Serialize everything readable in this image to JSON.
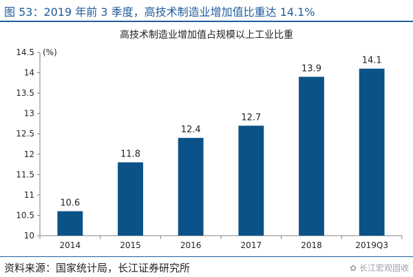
{
  "figure_title": "图 53：2019 年前 3 季度，高技术制造业增加值比重达 14.1%",
  "source": "资料来源：国家统计局，长江证券研究所",
  "watermark": "长江宏观固收",
  "colors": {
    "bar": "#0a5287",
    "title": "#1f5b9c"
  },
  "chart_data": {
    "type": "bar",
    "title": "高技术制造业增加值占规模以上工业比重",
    "ylabel": "(%)",
    "categories": [
      "2014",
      "2015",
      "2016",
      "2017",
      "2018",
      "2019Q3"
    ],
    "values": [
      10.6,
      11.8,
      12.4,
      12.7,
      13.9,
      14.1
    ],
    "data_labels": [
      "10.6",
      "11.8",
      "12.4",
      "12.7",
      "13.9",
      "14.1"
    ],
    "ylim": [
      10,
      14.5
    ],
    "yticks": [
      "10",
      "10.5",
      "11",
      "11.5",
      "12",
      "12.5",
      "13",
      "13.5",
      "14",
      "14.5"
    ],
    "grid": false,
    "legend": "none"
  }
}
